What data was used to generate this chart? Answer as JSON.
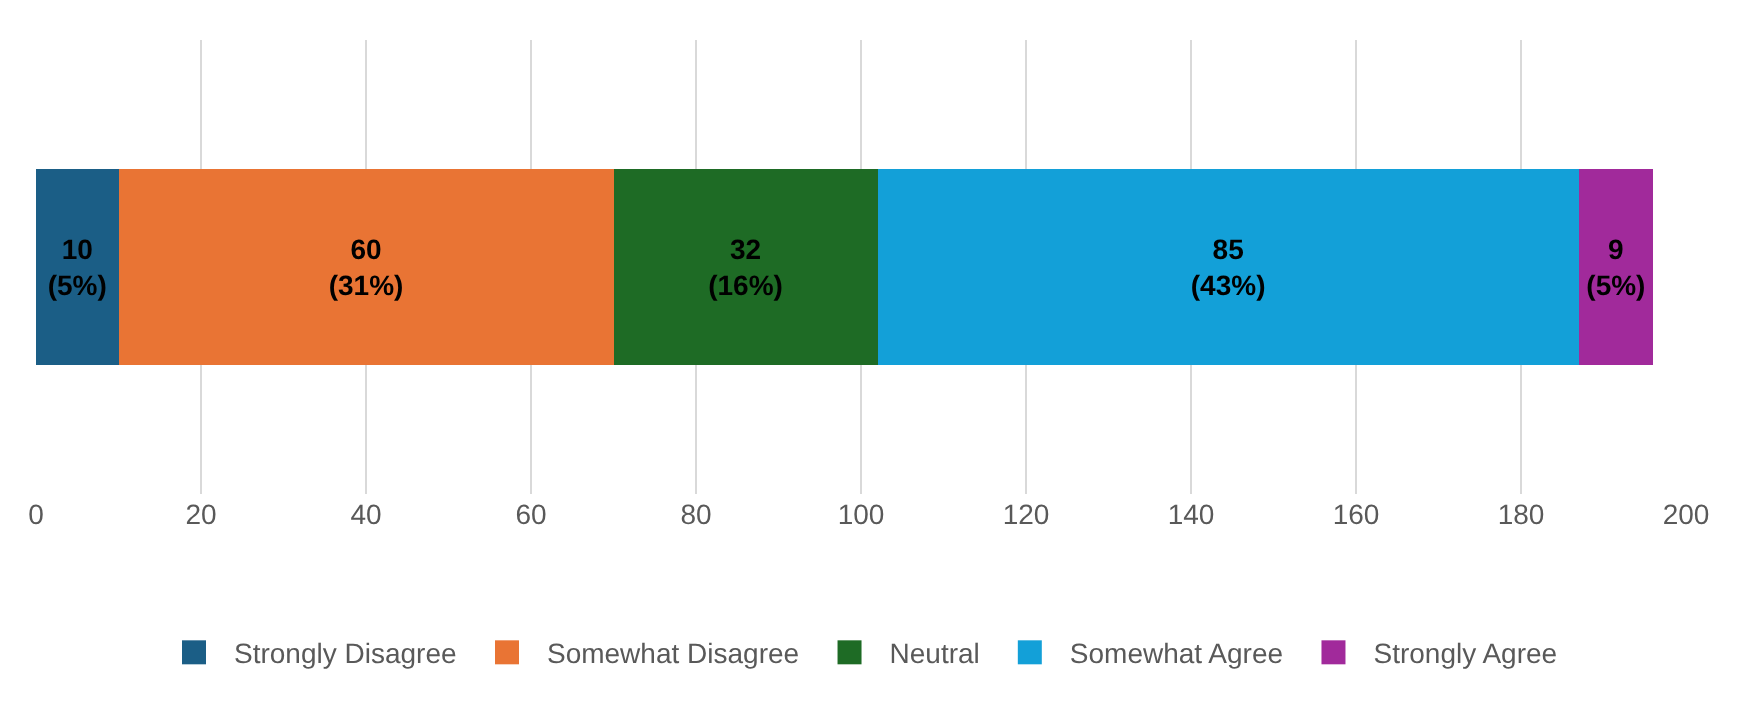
{
  "chart_data": {
    "type": "bar",
    "orientation": "horizontal",
    "stacked": true,
    "categories": [
      null
    ],
    "series": [
      {
        "name": "Strongly Disagree",
        "color": "#1b5e86",
        "values": [
          10
        ],
        "value_labels": [
          "10\n(5%)"
        ]
      },
      {
        "name": "Somewhat Disagree",
        "color": "#e97434",
        "values": [
          60
        ],
        "value_labels": [
          "60\n(31%)"
        ]
      },
      {
        "name": "Neutral",
        "color": "#1e6b25",
        "values": [
          32
        ],
        "value_labels": [
          "32\n(16%)"
        ]
      },
      {
        "name": "Somewhat Agree",
        "color": "#13a0d8",
        "values": [
          85
        ],
        "value_labels": [
          "85\n(43%)"
        ]
      },
      {
        "name": "Strongly Agree",
        "color": "#a12a9b",
        "values": [
          9
        ],
        "value_labels": [
          "9\n(5%)"
        ]
      }
    ],
    "xlim": [
      0,
      200
    ],
    "xticks": [
      0,
      20,
      40,
      60,
      80,
      100,
      120,
      140,
      160,
      180,
      200
    ],
    "grid": "x",
    "legend": "bottom"
  }
}
